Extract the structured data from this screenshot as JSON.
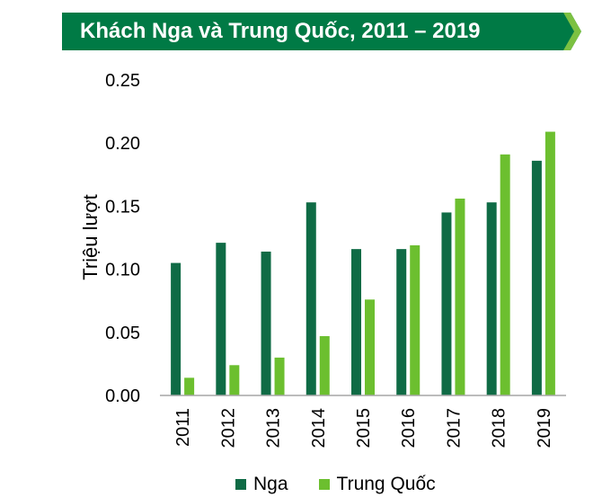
{
  "header": {
    "title": "Khách Nga và Trung Quốc, 2011 – 2019"
  },
  "colors": {
    "banner": "#007a45",
    "banner_accent": "#7cc142",
    "series_nga": "#0f6b45",
    "series_tq": "#6cbf2f",
    "axis": "#a6a6a6"
  },
  "chart_data": {
    "type": "bar",
    "title": "Khách Nga và Trung Quốc, 2011 – 2019",
    "ylabel": "Triệu lượt",
    "xlabel": "",
    "categories": [
      "2011",
      "2012",
      "2013",
      "2014",
      "2015",
      "2016",
      "2017",
      "2018",
      "2019"
    ],
    "series": [
      {
        "name": "Nga",
        "values": [
          0.105,
          0.121,
          0.114,
          0.153,
          0.116,
          0.116,
          0.145,
          0.153,
          0.186
        ]
      },
      {
        "name": "Trung Quốc",
        "values": [
          0.014,
          0.024,
          0.03,
          0.047,
          0.076,
          0.119,
          0.156,
          0.191,
          0.209
        ]
      }
    ],
    "ylim": [
      0,
      0.25
    ],
    "yticks": [
      "0.00",
      "0.05",
      "0.10",
      "0.15",
      "0.20",
      "0.25"
    ],
    "grid": false,
    "legend_position": "bottom"
  }
}
